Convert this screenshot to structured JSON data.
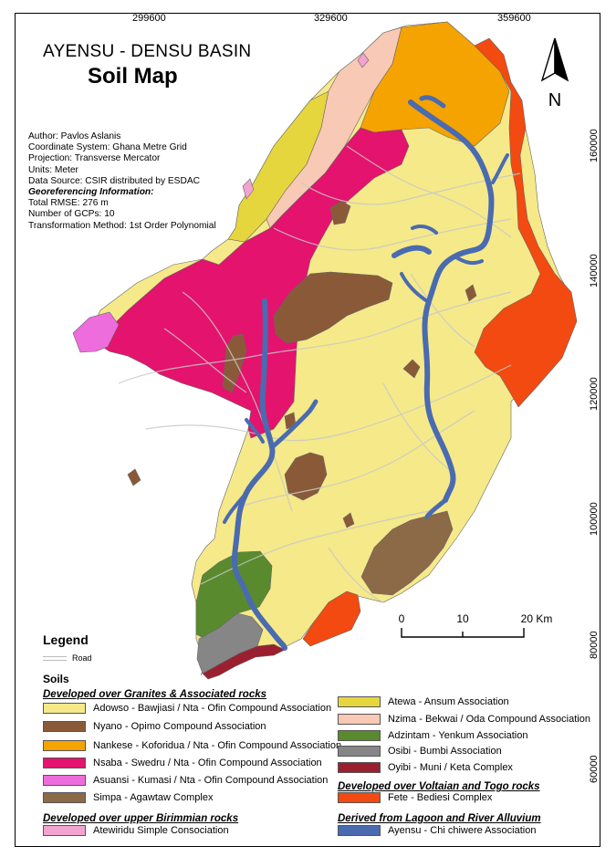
{
  "map": {
    "title": "AYENSU - DENSU BASIN",
    "subtitle": "Soil Map",
    "x_ticks": [
      "299600",
      "329600",
      "359600"
    ],
    "y_ticks": [
      "160000",
      "140000",
      "120000",
      "100000",
      "80000",
      "60000"
    ],
    "meta": {
      "author": "Author: Pavlos Aslanis",
      "coords": "Coordinate System: Ghana Metre Grid",
      "projection": "Projection: Transverse Mercator",
      "units": "Units: Meter",
      "source": "Data Source: CSIR distributed by ESDAC",
      "geo_heading": "Georeferencing Information:",
      "rmse": "Total RMSE: 276 m",
      "gcps": "Number of GCPs: 10",
      "method": "Transformation Method: 1st Order Polynomial"
    },
    "north_label": "N",
    "scale": {
      "labels": [
        "0",
        "10",
        "20 Km"
      ]
    }
  },
  "legend": {
    "title": "Legend",
    "road_label": "Road",
    "soils_title": "Soils",
    "groups": {
      "granites": "Developed over Granites & Associated rocks",
      "birimmian": "Developed over upper Birimmian rocks",
      "voltaian": "Developed over Voltaian and Togo rocks",
      "alluvium": "Derived from Lagoon and River Alluvium"
    },
    "items": [
      {
        "label": "Adowso - Bawjiasi / Nta - Ofin Compound Association",
        "color": "#f5e98a"
      },
      {
        "label": "Nyano - Opimo Compound Association",
        "color": "#8a5a38"
      },
      {
        "label": "Nankese - Koforidua / Nta - Ofin Compound Association",
        "color": "#f5a300"
      },
      {
        "label": "Nsaba - Swedru / Nta - Ofin Compound Association",
        "color": "#e4136d"
      },
      {
        "label": "Asuansi - Kumasi / Nta - Ofin Compound Association",
        "color": "#ee6ddd"
      },
      {
        "label": "Simpa - Agawtaw Complex",
        "color": "#8c6a48"
      },
      {
        "label": "Atewiridu Simple Consociation",
        "color": "#f2a3d0"
      },
      {
        "label": "Atewa - Ansum Association",
        "color": "#e6d63e"
      },
      {
        "label": "Nzima - Bekwai / Oda Compound Association",
        "color": "#f8c9b4"
      },
      {
        "label": "Adzintam - Yenkum Association",
        "color": "#5a8a2e"
      },
      {
        "label": "Osibi - Bumbi Association",
        "color": "#868686"
      },
      {
        "label": "Oyibi - Muni / Keta Complex",
        "color": "#9a2030"
      },
      {
        "label": "Fete - Bediesi Complex",
        "color": "#f24a10"
      },
      {
        "label": "Ayensu - Chi chiwere Association",
        "color": "#4a6bb0"
      }
    ]
  }
}
